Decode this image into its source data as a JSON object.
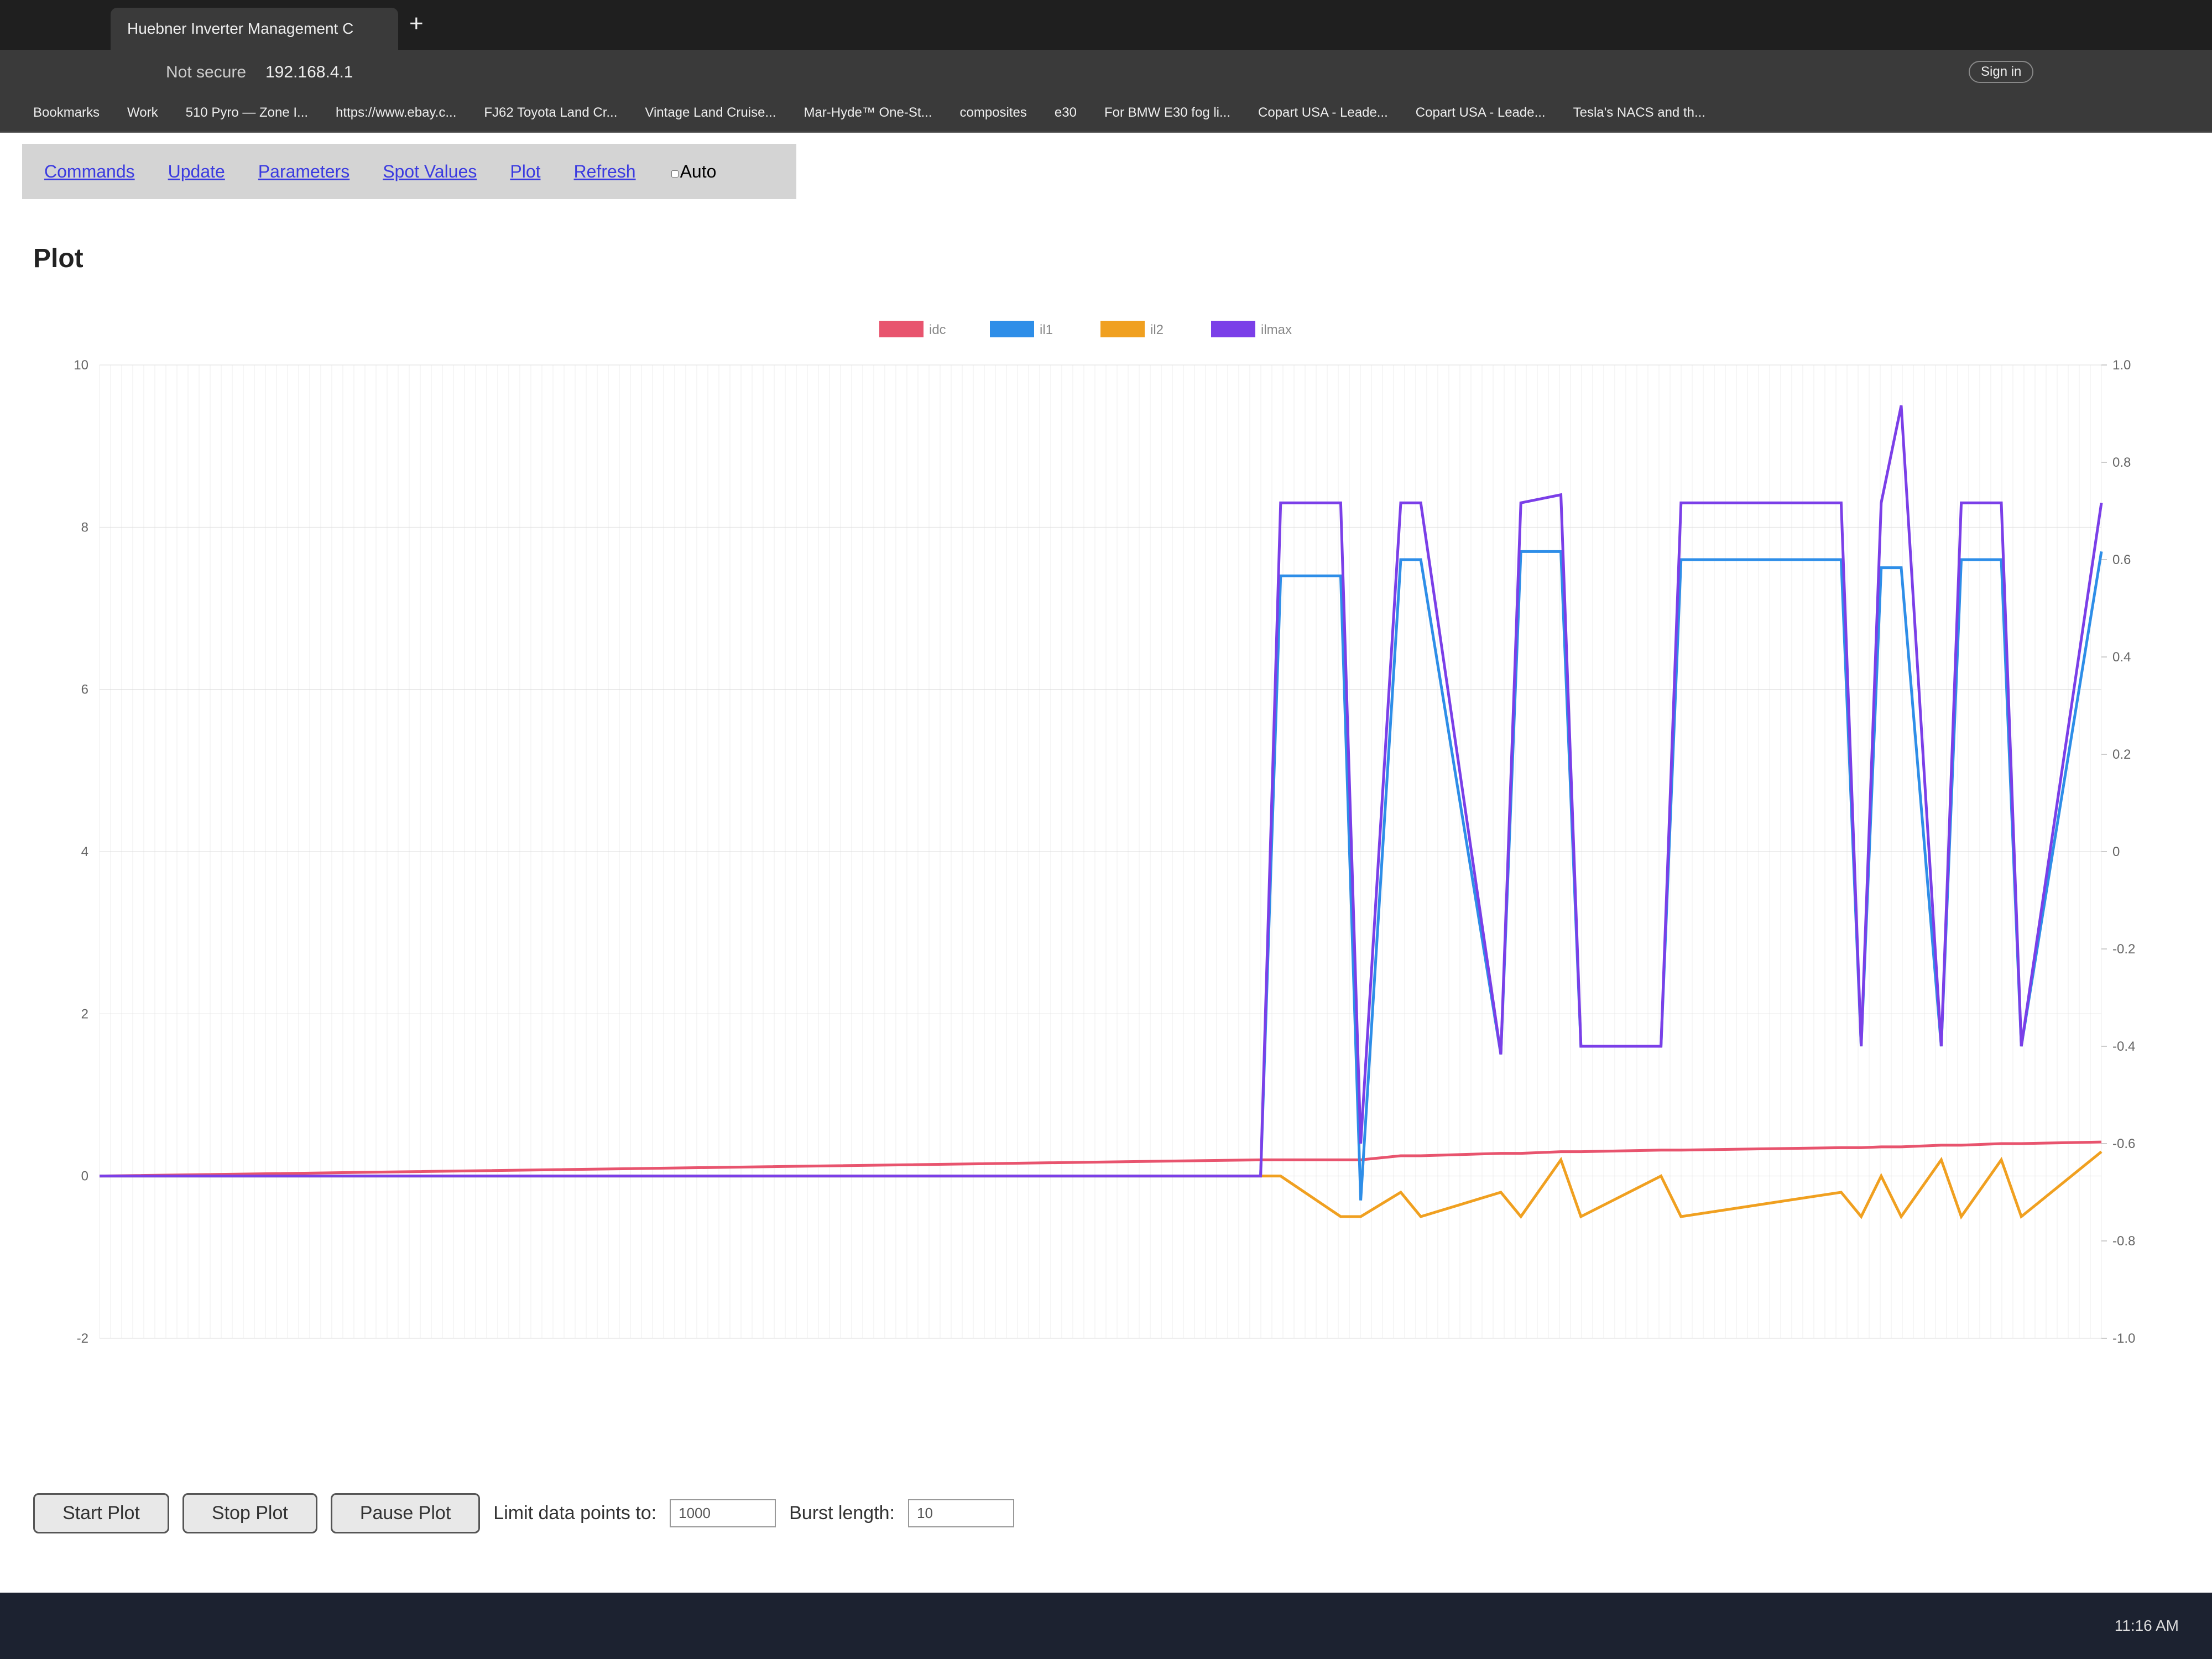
{
  "browser": {
    "tab_title": "Huebner Inverter Management C",
    "security": "Not secure",
    "address": "192.168.4.1",
    "bookmarks": [
      "Bookmarks",
      "Work",
      "510 Pyro — Zone I...",
      "https://www.ebay.c...",
      "FJ62 Toyota Land Cr...",
      "Vintage Land Cruise...",
      "Mar-Hyde™ One-St...",
      "composites",
      "e30",
      "For BMW E30 fog li...",
      "Copart USA - Leade...",
      "Copart USA - Leade...",
      "Tesla's NACS and th..."
    ],
    "sign_in": "Sign in"
  },
  "nav": {
    "links": [
      "Commands",
      "Update",
      "Parameters",
      "Spot Values",
      "Plot",
      "Refresh"
    ],
    "auto": "Auto"
  },
  "heading": "Plot",
  "chart_data": {
    "type": "line",
    "x": [
      0,
      58,
      59,
      62,
      63,
      65,
      66,
      70,
      71,
      73,
      74,
      78,
      79,
      87,
      88,
      89,
      90,
      92,
      93,
      95,
      96,
      100
    ],
    "xlim": [
      0,
      100
    ],
    "ylim": [
      -2,
      10
    ],
    "yticks": [
      -2,
      0,
      2,
      4,
      6,
      8,
      10
    ],
    "y2lim": [
      -1,
      1
    ],
    "y2ticks": [
      {
        "value": 1,
        "label": "1.0"
      },
      0.8,
      0.6,
      0.4,
      0.2,
      0,
      -0.2,
      -0.4,
      -0.6,
      -0.8,
      {
        "value": -1,
        "label": "-1.0"
      }
    ],
    "grid": true,
    "legend": "top",
    "series": [
      {
        "name": "idc",
        "color": "#e8546e",
        "values": [
          0,
          0.2,
          0.2,
          0.2,
          0.2,
          0.25,
          0.25,
          0.28,
          0.28,
          0.3,
          0.3,
          0.32,
          0.32,
          0.35,
          0.35,
          0.36,
          0.36,
          0.38,
          0.38,
          0.4,
          0.4,
          0.42
        ]
      },
      {
        "name": "il1",
        "color": "#2e8ee8",
        "values": [
          0,
          0,
          7.4,
          7.4,
          -0.3,
          7.6,
          7.6,
          1.5,
          7.7,
          7.7,
          1.6,
          1.6,
          7.6,
          7.6,
          1.6,
          7.5,
          7.5,
          1.6,
          7.6,
          7.6,
          1.6,
          7.7
        ]
      },
      {
        "name": "il2",
        "color": "#f0a020",
        "values": [
          0,
          0,
          0,
          -0.5,
          -0.5,
          -0.2,
          -0.5,
          -0.2,
          -0.5,
          0.2,
          -0.5,
          0,
          -0.5,
          -0.2,
          -0.5,
          0,
          -0.5,
          0.2,
          -0.5,
          0.2,
          -0.5,
          0.3
        ]
      },
      {
        "name": "ilmax",
        "color": "#7b3fe8",
        "values": [
          0,
          0,
          8.3,
          8.3,
          0.4,
          8.3,
          8.3,
          1.5,
          8.3,
          8.4,
          1.6,
          1.6,
          8.3,
          8.3,
          1.6,
          8.3,
          9.5,
          1.6,
          8.3,
          8.3,
          1.6,
          8.3
        ]
      }
    ]
  },
  "controls": {
    "buttons": [
      "Start Plot",
      "Stop Plot",
      "Pause Plot"
    ],
    "limit_label": "Limit data points to:",
    "limit_value": "1000",
    "burst_label": "Burst length:",
    "burst_value": "10"
  },
  "taskbar": {
    "time": "11:16 AM"
  }
}
